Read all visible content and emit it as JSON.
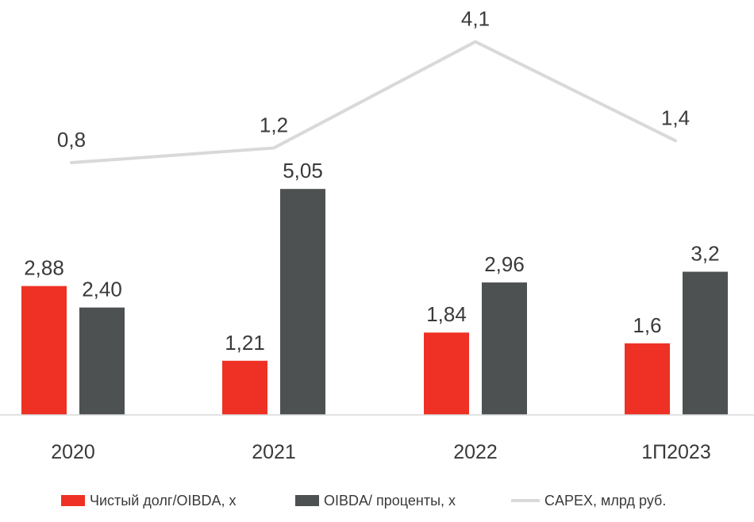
{
  "chart_data": {
    "type": "bar",
    "categories": [
      "2020",
      "2021",
      "2022",
      "1П2023"
    ],
    "series": [
      {
        "name": "Чистый долг/OIBDA, х",
        "type": "bar",
        "color": "#ee3124",
        "values": [
          2.88,
          1.21,
          1.84,
          1.6
        ],
        "labels": [
          "2,88",
          "1,21",
          "1,84",
          "1,6"
        ]
      },
      {
        "name": "OIBDA/ проценты, х",
        "type": "bar",
        "color": "#4d5152",
        "values": [
          2.4,
          5.05,
          2.96,
          3.2
        ],
        "labels": [
          "2,40",
          "5,05",
          "2,96",
          "3,2"
        ]
      },
      {
        "name": "CAPEX, млрд руб.",
        "type": "line",
        "color": "#d9d9d9",
        "values": [
          0.8,
          1.2,
          4.1,
          1.4
        ],
        "labels": [
          "0,8",
          "1,2",
          "4,1",
          "1,4"
        ]
      }
    ],
    "legend_position": "bottom",
    "grid": false
  }
}
